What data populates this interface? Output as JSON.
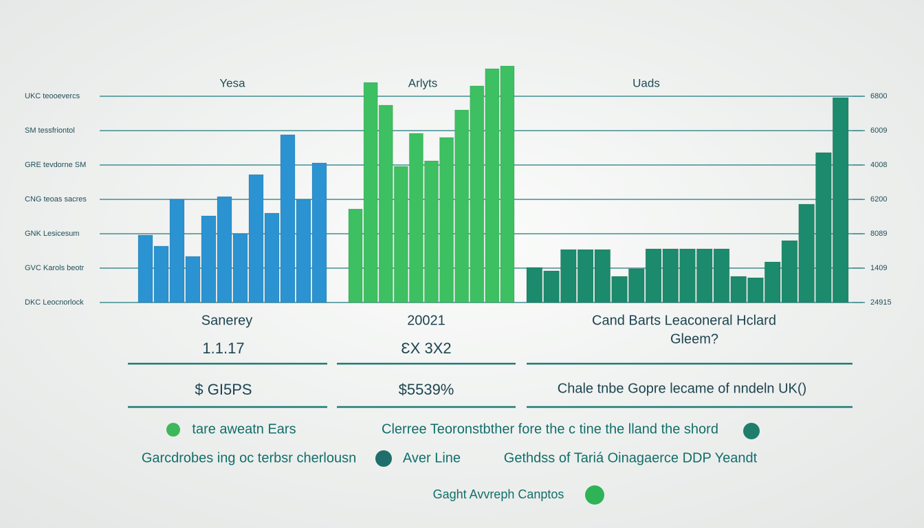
{
  "chart_data": [
    {
      "type": "bar",
      "title": "Yesa",
      "color": "#2b93d1",
      "values": [
        1.96,
        1.64,
        3.0,
        1.34,
        2.52,
        3.08,
        2.0,
        3.72,
        2.6,
        4.88,
        3.0,
        4.06
      ],
      "ylim": [
        0,
        7
      ],
      "yticks": [
        {
          "value": 0,
          "label": "DKC  Leocnorlock"
        },
        {
          "value": 1,
          "label": "GVC  Karols beotr"
        },
        {
          "value": 2,
          "label": "GNK  Lesicesum"
        },
        {
          "value": 3,
          "label": "CNG  teoas sacres"
        },
        {
          "value": 4,
          "label": "GRE  tevdorne SM"
        },
        {
          "value": 5,
          "label": "SM  tessfriontol"
        },
        {
          "value": 6,
          "label": "UKC  teooevercs"
        }
      ],
      "grid": true
    },
    {
      "type": "bar",
      "title": "Arlyts",
      "color": "#3cc061",
      "values": [
        2.72,
        6.4,
        5.74,
        3.96,
        4.92,
        4.12,
        4.8,
        5.6,
        6.3,
        6.8,
        6.88
      ],
      "ylim": [
        0,
        7
      ]
    },
    {
      "type": "bar",
      "title": "Uads",
      "color": "#1c8a6c",
      "values": [
        1.02,
        0.92,
        1.54,
        1.54,
        1.54,
        0.76,
        0.98,
        1.56,
        1.56,
        1.56,
        1.56,
        1.56,
        0.76,
        0.72,
        1.18,
        1.8,
        2.86,
        4.36,
        5.96
      ],
      "ylim": [
        0,
        7
      ],
      "yticks": [
        {
          "value": 0,
          "label": "24915"
        },
        {
          "value": 1,
          "label": "1409"
        },
        {
          "value": 2,
          "label": "8089"
        },
        {
          "value": 3,
          "label": "6200"
        },
        {
          "value": 4,
          "label": "4008"
        },
        {
          "value": 5,
          "label": "6009"
        },
        {
          "value": 6,
          "label": "6800"
        }
      ]
    }
  ],
  "panels": [
    {
      "caption": [
        "Sanerey"
      ],
      "value": "1.1.17",
      "amount": "$ GI5PS"
    },
    {
      "caption": [
        "20021"
      ],
      "value": "ƐX 3X2",
      "amount": "$5539%"
    },
    {
      "caption": [
        "Cand Barts Leaconeral Hclard",
        "Gleem?"
      ],
      "amount": "Chale tnbe Gopre lecame of nndeln UK()"
    }
  ],
  "footer": {
    "line1": [
      "tare aweatn Ears",
      "Clerree Teoronstbther fore the c tine the lland the shord"
    ],
    "line2": [
      "Garcdrobes ing oc terbsr cherlousn",
      "Aver Line",
      "Gethdss of Tariá Oinagaerce DDP Yeandt"
    ],
    "caption": "Gaght Avvreph Canptos"
  }
}
